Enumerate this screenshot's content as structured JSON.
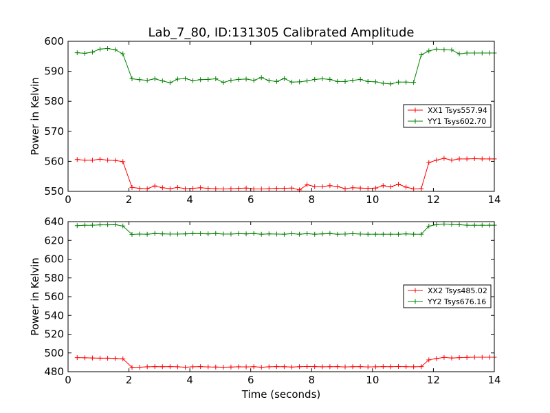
{
  "chart_data": [
    {
      "type": "line",
      "title": "Lab_7_80, ID:131305 Calibrated Amplitude",
      "xlabel": "",
      "ylabel": "Power in Kelvin",
      "xlim": [
        0,
        14
      ],
      "ylim": [
        550,
        600
      ],
      "xticks": [
        0,
        2,
        4,
        6,
        8,
        10,
        12,
        14
      ],
      "yticks": [
        550,
        560,
        570,
        580,
        590,
        600
      ],
      "grid": false,
      "legend_position": "right",
      "x": [
        0.3,
        0.55,
        0.8,
        1.05,
        1.3,
        1.55,
        1.8,
        2.1,
        2.35,
        2.6,
        2.85,
        3.1,
        3.35,
        3.6,
        3.85,
        4.1,
        4.35,
        4.6,
        4.85,
        5.1,
        5.35,
        5.6,
        5.85,
        6.1,
        6.35,
        6.6,
        6.85,
        7.1,
        7.35,
        7.6,
        7.85,
        8.1,
        8.35,
        8.6,
        8.85,
        9.1,
        9.35,
        9.6,
        9.85,
        10.1,
        10.35,
        10.6,
        10.85,
        11.1,
        11.35,
        11.6,
        11.85,
        12.1,
        12.35,
        12.6,
        12.85,
        13.1,
        13.35,
        13.6,
        13.85,
        14.0
      ],
      "series": [
        {
          "name": "XX1 Tsys557.94",
          "color": "#ff0000",
          "values": [
            560.6,
            560.4,
            560.4,
            560.7,
            560.4,
            560.3,
            559.9,
            551.3,
            551.0,
            550.9,
            551.8,
            551.2,
            550.9,
            551.3,
            550.9,
            551.0,
            551.2,
            551.0,
            550.9,
            550.8,
            550.9,
            551.0,
            551.1,
            550.8,
            550.8,
            550.9,
            551.0,
            551.0,
            551.1,
            550.5,
            552.2,
            551.6,
            551.6,
            551.9,
            551.6,
            550.9,
            551.2,
            551.1,
            551.0,
            551.1,
            551.9,
            551.5,
            552.4,
            551.4,
            550.8,
            550.9,
            559.6,
            560.4,
            561.0,
            560.4,
            560.8,
            560.8,
            560.9,
            560.8,
            560.8,
            560.8
          ]
        },
        {
          "name": "YY1 Tsys602.70",
          "color": "#008000",
          "values": [
            596.2,
            596.0,
            596.4,
            597.4,
            597.6,
            597.2,
            595.8,
            587.5,
            587.2,
            587.0,
            587.5,
            586.8,
            586.2,
            587.4,
            587.6,
            586.9,
            587.2,
            587.3,
            587.5,
            586.3,
            587.0,
            587.3,
            587.4,
            587.0,
            587.9,
            586.9,
            586.6,
            587.6,
            586.4,
            586.5,
            586.8,
            587.3,
            587.5,
            587.3,
            586.6,
            586.6,
            587.0,
            587.3,
            586.6,
            586.5,
            586.0,
            585.8,
            586.4,
            586.4,
            586.3,
            595.5,
            596.8,
            597.4,
            597.2,
            597.1,
            595.8,
            596.1,
            596.1,
            596.1,
            596.1,
            596.1
          ]
        }
      ]
    },
    {
      "type": "line",
      "title": "",
      "xlabel": "Time (seconds)",
      "ylabel": "Power in Kelvin",
      "xlim": [
        0,
        14
      ],
      "ylim": [
        480,
        640
      ],
      "xticks": [
        0,
        2,
        4,
        6,
        8,
        10,
        12,
        14
      ],
      "yticks": [
        480,
        500,
        520,
        540,
        560,
        580,
        600,
        620,
        640
      ],
      "grid": false,
      "legend_position": "right",
      "x": [
        0.3,
        0.55,
        0.8,
        1.05,
        1.3,
        1.55,
        1.8,
        2.1,
        2.35,
        2.6,
        2.85,
        3.1,
        3.35,
        3.6,
        3.85,
        4.1,
        4.35,
        4.6,
        4.85,
        5.1,
        5.35,
        5.6,
        5.85,
        6.1,
        6.35,
        6.6,
        6.85,
        7.1,
        7.35,
        7.6,
        7.85,
        8.1,
        8.35,
        8.6,
        8.85,
        9.1,
        9.35,
        9.6,
        9.85,
        10.1,
        10.35,
        10.6,
        10.85,
        11.1,
        11.35,
        11.6,
        11.85,
        12.1,
        12.35,
        12.6,
        12.85,
        13.1,
        13.35,
        13.6,
        13.85,
        14.0
      ],
      "series": [
        {
          "name": "XX2 Tsys485.02",
          "color": "#ff0000",
          "values": [
            495.0,
            494.8,
            494.6,
            494.4,
            494.4,
            494.2,
            493.8,
            484.6,
            484.8,
            485.2,
            485.4,
            485.3,
            485.4,
            485.2,
            484.8,
            485.2,
            485.4,
            485.1,
            485.0,
            484.8,
            485.0,
            485.2,
            485.1,
            485.3,
            484.8,
            485.2,
            485.4,
            485.3,
            485.0,
            485.3,
            485.5,
            485.4,
            485.2,
            485.3,
            485.4,
            485.1,
            485.3,
            485.4,
            485.1,
            485.2,
            485.4,
            485.3,
            485.5,
            485.3,
            485.2,
            485.4,
            492.6,
            494.0,
            495.2,
            494.6,
            495.0,
            495.2,
            495.4,
            495.4,
            495.4,
            495.4
          ]
        },
        {
          "name": "YY2 Tsys676.16",
          "color": "#008000",
          "values": [
            635.8,
            636.2,
            636.2,
            636.6,
            636.6,
            636.8,
            635.4,
            626.4,
            626.8,
            626.6,
            627.4,
            627.0,
            626.8,
            626.8,
            627.0,
            627.4,
            627.2,
            627.0,
            627.4,
            626.8,
            626.8,
            627.2,
            627.0,
            627.4,
            626.6,
            627.0,
            626.8,
            626.6,
            627.2,
            626.6,
            627.2,
            626.6,
            627.0,
            627.4,
            626.6,
            626.8,
            627.2,
            626.8,
            626.6,
            626.6,
            626.6,
            626.6,
            626.6,
            627.0,
            626.6,
            626.6,
            635.2,
            636.8,
            637.4,
            637.0,
            636.8,
            636.2,
            636.2,
            636.2,
            636.2,
            636.2
          ]
        }
      ]
    }
  ]
}
